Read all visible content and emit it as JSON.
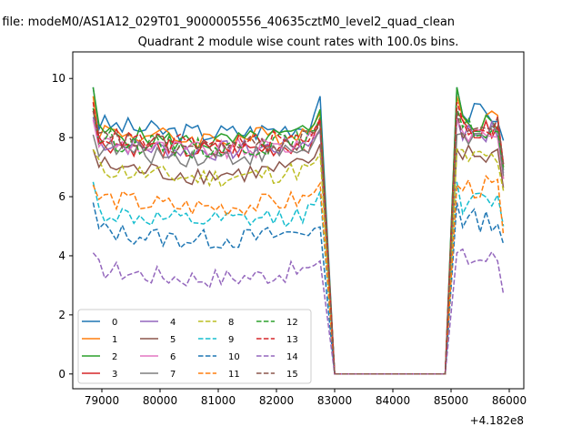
{
  "suptitle": "n file: modeM0/AS1A12_029T01_9000005556_40635cztM0_level2_quad_clean",
  "title": "Quadrant 2 module wise count rates with 100.0s bins.",
  "x_offset_label": "+4.182e8",
  "chart_data": {
    "type": "line",
    "title": "Quadrant 2 module wise count rates with 100.0s bins.",
    "xlabel": "",
    "ylabel": "",
    "x_offset": 418200000,
    "xlim": [
      78500,
      86250
    ],
    "ylim": [
      -0.5,
      10.9
    ],
    "xticks": [
      79000,
      80000,
      81000,
      82000,
      83000,
      84000,
      85000,
      86000
    ],
    "yticks": [
      0,
      2,
      4,
      6,
      8,
      10
    ],
    "grid": false,
    "legend_placement": "lower-left",
    "legend_columns": 4,
    "gap_x": [
      83000,
      84900
    ],
    "series": [
      {
        "name": "0",
        "color": "#1f77b4",
        "style": "solid",
        "base": 8.5,
        "level_a": 9.7,
        "level_b": 9.7,
        "end_value": 7.9
      },
      {
        "name": "1",
        "color": "#ff7f0e",
        "style": "solid",
        "base": 8.3,
        "level_a": 9.4,
        "level_b": 9.0,
        "end_value": 6.6
      },
      {
        "name": "2",
        "color": "#2ca02c",
        "style": "solid",
        "base": 8.2,
        "level_a": 9.7,
        "level_b": 9.2,
        "end_value": 6.9
      },
      {
        "name": "3",
        "color": "#d62728",
        "style": "solid",
        "base": 7.9,
        "level_a": 8.9,
        "level_b": 8.8,
        "end_value": 7.0
      },
      {
        "name": "4",
        "color": "#9467bd",
        "style": "solid",
        "base": 7.9,
        "level_a": 8.7,
        "level_b": 8.3,
        "end_value": 6.8
      },
      {
        "name": "5",
        "color": "#8c564b",
        "style": "solid",
        "base": 7.1,
        "level_a": 7.6,
        "level_b": 8.0,
        "end_value": 6.3
      },
      {
        "name": "6",
        "color": "#e377c2",
        "style": "solid",
        "base": 7.9,
        "level_a": 8.6,
        "level_b": 8.4,
        "end_value": 6.6
      },
      {
        "name": "7",
        "color": "#7f7f7f",
        "style": "solid",
        "base": 7.7,
        "level_a": 8.1,
        "level_b": 8.5,
        "end_value": 6.7
      },
      {
        "name": "8",
        "color": "#bcbd22",
        "style": "dashed",
        "base": 7.0,
        "level_a": 7.6,
        "level_b": 7.6,
        "end_value": 6.2
      },
      {
        "name": "9",
        "color": "#17becf",
        "style": "dashed",
        "base": 5.5,
        "level_a": 6.5,
        "level_b": 6.4,
        "end_value": 5.0
      },
      {
        "name": "10",
        "color": "#1f77b4",
        "style": "dashed",
        "base": 4.9,
        "level_a": 5.8,
        "level_b": 5.0,
        "end_value": 4.4
      },
      {
        "name": "11",
        "color": "#ff7f0e",
        "style": "dashed",
        "base": 6.0,
        "level_a": 6.4,
        "level_b": 6.6,
        "end_value": 4.7
      },
      {
        "name": "12",
        "color": "#2ca02c",
        "style": "dashed",
        "base": 8.0,
        "level_a": 9.0,
        "level_b": 8.9,
        "end_value": 7.0
      },
      {
        "name": "13",
        "color": "#d62728",
        "style": "dashed",
        "base": 8.1,
        "level_a": 9.2,
        "level_b": 8.8,
        "end_value": 7.1
      },
      {
        "name": "14",
        "color": "#9467bd",
        "style": "dashed",
        "base": 3.6,
        "level_a": 4.1,
        "level_b": 3.9,
        "end_value": 2.7
      },
      {
        "name": "15",
        "color": "#8c564b",
        "style": "dashed",
        "base": 8.0,
        "level_a": 8.9,
        "level_b": 8.6,
        "end_value": 7.1
      }
    ]
  }
}
